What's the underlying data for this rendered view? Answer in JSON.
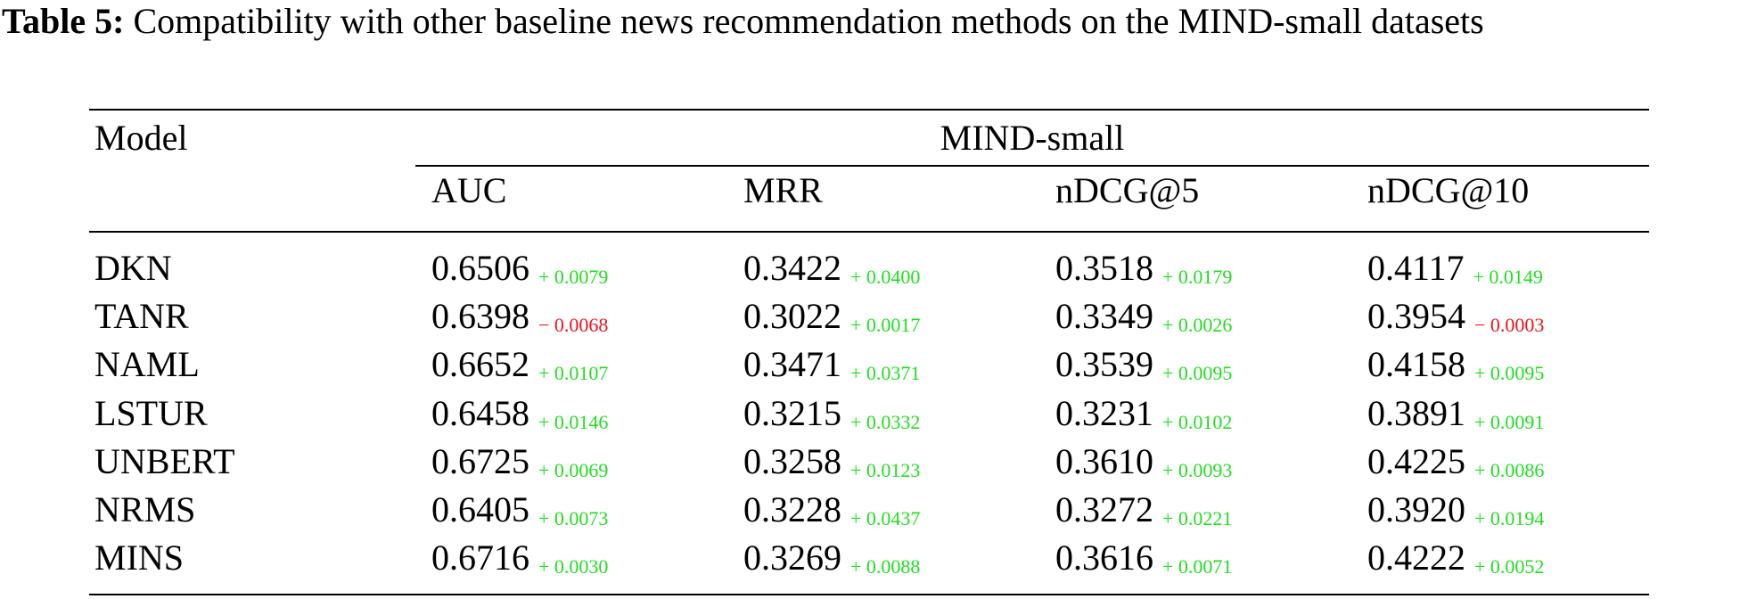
{
  "caption": {
    "label": "Table 5:",
    "text": "Compatibility with other baseline news recommendation methods on the MIND-small datasets"
  },
  "table": {
    "model_header": "Model",
    "group_header": "MIND-small",
    "metrics": [
      "AUC",
      "MRR",
      "nDCG@5",
      "nDCG@10"
    ],
    "colors": {
      "positive_delta": "#22dd22",
      "negative_delta": "#e8141e"
    },
    "rows": [
      {
        "model": "DKN",
        "cells": [
          {
            "value": "0.6506",
            "delta": "+ 0.0079",
            "sign": "pos"
          },
          {
            "value": "0.3422",
            "delta": "+ 0.0400",
            "sign": "pos"
          },
          {
            "value": "0.3518",
            "delta": "+ 0.0179",
            "sign": "pos"
          },
          {
            "value": "0.4117",
            "delta": "+ 0.0149",
            "sign": "pos"
          }
        ]
      },
      {
        "model": "TANR",
        "cells": [
          {
            "value": "0.6398",
            "delta": "− 0.0068",
            "sign": "neg"
          },
          {
            "value": "0.3022",
            "delta": "+ 0.0017",
            "sign": "pos"
          },
          {
            "value": "0.3349",
            "delta": "+ 0.0026",
            "sign": "pos"
          },
          {
            "value": "0.3954",
            "delta": "− 0.0003",
            "sign": "neg"
          }
        ]
      },
      {
        "model": "NAML",
        "cells": [
          {
            "value": "0.6652",
            "delta": "+ 0.0107",
            "sign": "pos"
          },
          {
            "value": "0.3471",
            "delta": "+ 0.0371",
            "sign": "pos"
          },
          {
            "value": "0.3539",
            "delta": "+ 0.0095",
            "sign": "pos"
          },
          {
            "value": "0.4158",
            "delta": "+ 0.0095",
            "sign": "pos"
          }
        ]
      },
      {
        "model": "LSTUR",
        "cells": [
          {
            "value": "0.6458",
            "delta": "+ 0.0146",
            "sign": "pos"
          },
          {
            "value": "0.3215",
            "delta": "+ 0.0332",
            "sign": "pos"
          },
          {
            "value": "0.3231",
            "delta": "+ 0.0102",
            "sign": "pos"
          },
          {
            "value": "0.3891",
            "delta": "+ 0.0091",
            "sign": "pos"
          }
        ]
      },
      {
        "model": "UNBERT",
        "cells": [
          {
            "value": "0.6725",
            "delta": "+ 0.0069",
            "sign": "pos"
          },
          {
            "value": "0.3258",
            "delta": "+ 0.0123",
            "sign": "pos"
          },
          {
            "value": "0.3610",
            "delta": "+ 0.0093",
            "sign": "pos"
          },
          {
            "value": "0.4225",
            "delta": "+ 0.0086",
            "sign": "pos"
          }
        ]
      },
      {
        "model": "NRMS",
        "cells": [
          {
            "value": "0.6405",
            "delta": "+ 0.0073",
            "sign": "pos"
          },
          {
            "value": "0.3228",
            "delta": "+ 0.0437",
            "sign": "pos"
          },
          {
            "value": "0.3272",
            "delta": "+ 0.0221",
            "sign": "pos"
          },
          {
            "value": "0.3920",
            "delta": "+ 0.0194",
            "sign": "pos"
          }
        ]
      },
      {
        "model": "MINS",
        "cells": [
          {
            "value": "0.6716",
            "delta": "+ 0.0030",
            "sign": "pos"
          },
          {
            "value": "0.3269",
            "delta": "+ 0.0088",
            "sign": "pos"
          },
          {
            "value": "0.3616",
            "delta": "+ 0.0071",
            "sign": "pos"
          },
          {
            "value": "0.4222",
            "delta": "+ 0.0052",
            "sign": "pos"
          }
        ]
      }
    ]
  }
}
